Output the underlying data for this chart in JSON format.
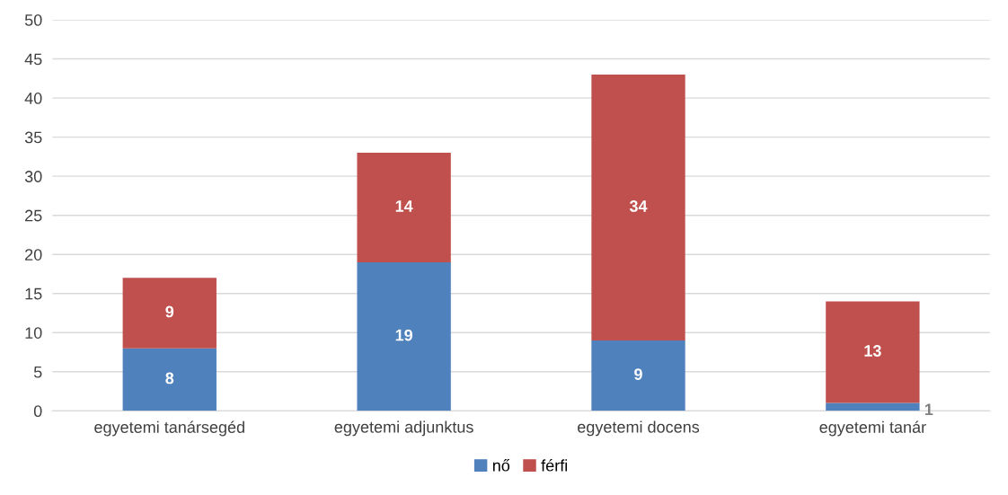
{
  "chart_data": {
    "type": "bar",
    "stacked": true,
    "categories": [
      "egyetemi tanársegéd",
      "egyetemi adjunktus",
      "egyetemi docens",
      "egyetemi tanár"
    ],
    "series": [
      {
        "name": "nő",
        "color": "#4f81bd",
        "values": [
          8,
          19,
          9,
          1
        ]
      },
      {
        "name": "férfi",
        "color": "#c0504d",
        "values": [
          9,
          14,
          34,
          13
        ]
      }
    ],
    "ylim": [
      0,
      50
    ],
    "yticks": [
      0,
      5,
      10,
      15,
      20,
      25,
      30,
      35,
      40,
      45,
      50
    ],
    "grid": "y",
    "legend": "bottom",
    "data_labels": true
  }
}
